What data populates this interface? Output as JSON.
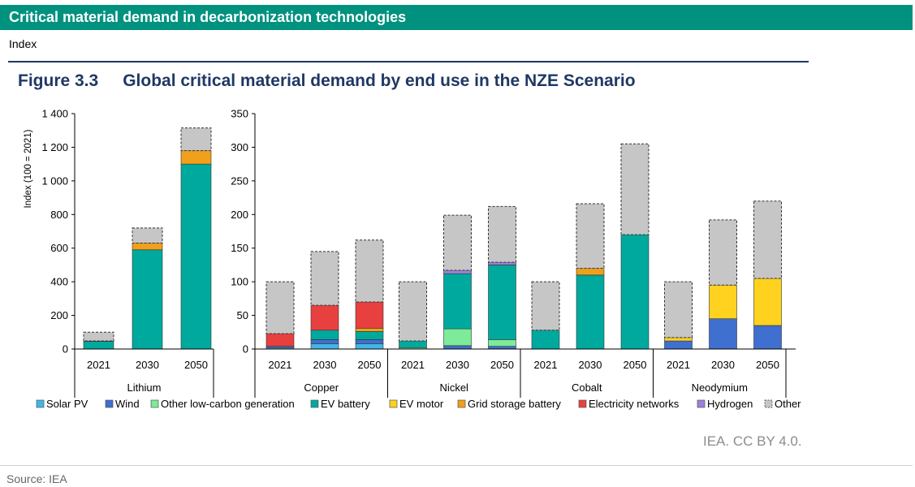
{
  "header": {
    "title": "Critical material demand in decarbonization technologies",
    "subtitle": "Index"
  },
  "figure": {
    "number": "Figure 3.3",
    "title": "Global critical material demand by end use in the NZE Scenario"
  },
  "footer": {
    "credit": "IEA. CC BY 4.0.",
    "source": "Source: IEA"
  },
  "colors": {
    "Solar PV": "#41b6e6",
    "Wind": "#3f6fcf",
    "Other low-carbon generation": "#7deb9a",
    "EV battery": "#00a99d",
    "EV motor": "#ffd21f",
    "Grid storage battery": "#f0a01a",
    "Electricity networks": "#e8403f",
    "Hydrogen": "#9f7fdb",
    "Other": "#c6c6c6"
  },
  "chart_data": [
    {
      "type": "bar",
      "stacked": true,
      "ylabel": "Index (100 = 2021)",
      "ylim": [
        0,
        1400
      ],
      "yticks": [
        0,
        200,
        400,
        600,
        800,
        1000,
        1200,
        1400
      ],
      "ytick_labels": [
        "0",
        "200",
        "400",
        "600",
        "800",
        "1 000",
        "1 200",
        "1 400"
      ],
      "groups": [
        {
          "name": "Lithium",
          "categories": [
            "2021",
            "2030",
            "2050"
          ],
          "stacks": [
            {
              "Solar PV": 0,
              "Wind": 0,
              "Other low-carbon generation": 0,
              "EV battery": 45,
              "EV motor": 0,
              "Grid storage battery": 3,
              "Electricity networks": 0,
              "Hydrogen": 0,
              "Other": 52
            },
            {
              "Solar PV": 0,
              "Wind": 0,
              "Other low-carbon generation": 0,
              "EV battery": 590,
              "EV motor": 0,
              "Grid storage battery": 40,
              "Electricity networks": 0,
              "Hydrogen": 0,
              "Other": 90
            },
            {
              "Solar PV": 0,
              "Wind": 0,
              "Other low-carbon generation": 0,
              "EV battery": 1100,
              "EV motor": 0,
              "Grid storage battery": 80,
              "Electricity networks": 0,
              "Hydrogen": 0,
              "Other": 135
            }
          ]
        }
      ]
    },
    {
      "type": "bar",
      "stacked": true,
      "ylim": [
        0,
        350
      ],
      "yticks": [
        0,
        50,
        100,
        150,
        200,
        250,
        300,
        350
      ],
      "ytick_labels": [
        "0",
        "50",
        "100",
        "150",
        "200",
        "250",
        "300",
        "350"
      ],
      "groups": [
        {
          "name": "Copper",
          "categories": [
            "2021",
            "2030",
            "2050"
          ],
          "stacks": [
            {
              "Solar PV": 2,
              "Wind": 2,
              "Other low-carbon generation": 0,
              "EV battery": 0,
              "EV motor": 0,
              "Grid storage battery": 0,
              "Electricity networks": 19,
              "Hydrogen": 0,
              "Other": 77
            },
            {
              "Solar PV": 8,
              "Wind": 6,
              "Other low-carbon generation": 0,
              "EV battery": 14,
              "EV motor": 0,
              "Grid storage battery": 0,
              "Electricity networks": 37,
              "Hydrogen": 0,
              "Other": 80
            },
            {
              "Solar PV": 8,
              "Wind": 6,
              "Other low-carbon generation": 0,
              "EV battery": 12,
              "EV motor": 0,
              "Grid storage battery": 5,
              "Electricity networks": 39,
              "Hydrogen": 0,
              "Other": 92
            }
          ]
        },
        {
          "name": "Nickel",
          "categories": [
            "2021",
            "2030",
            "2050"
          ],
          "stacks": [
            {
              "Solar PV": 0,
              "Wind": 0,
              "Other low-carbon generation": 2,
              "EV battery": 10,
              "EV motor": 0,
              "Grid storage battery": 0,
              "Electricity networks": 0,
              "Hydrogen": 0,
              "Other": 88
            },
            {
              "Solar PV": 0,
              "Wind": 5,
              "Other low-carbon generation": 25,
              "EV battery": 82,
              "EV motor": 0,
              "Grid storage battery": 0,
              "Electricity networks": 0,
              "Hydrogen": 5,
              "Other": 82
            },
            {
              "Solar PV": 0,
              "Wind": 4,
              "Other low-carbon generation": 10,
              "EV battery": 111,
              "EV motor": 0,
              "Grid storage battery": 0,
              "Electricity networks": 0,
              "Hydrogen": 4,
              "Other": 83
            }
          ]
        },
        {
          "name": "Cobalt",
          "categories": [
            "2021",
            "2030",
            "2050"
          ],
          "stacks": [
            {
              "Solar PV": 0,
              "Wind": 0,
              "Other low-carbon generation": 0,
              "EV battery": 28,
              "EV motor": 0,
              "Grid storage battery": 0,
              "Electricity networks": 0,
              "Hydrogen": 0,
              "Other": 72
            },
            {
              "Solar PV": 0,
              "Wind": 0,
              "Other low-carbon generation": 0,
              "EV battery": 110,
              "EV motor": 0,
              "Grid storage battery": 10,
              "Electricity networks": 0,
              "Hydrogen": 0,
              "Other": 96
            },
            {
              "Solar PV": 0,
              "Wind": 0,
              "Other low-carbon generation": 0,
              "EV battery": 170,
              "EV motor": 0,
              "Grid storage battery": 0,
              "Electricity networks": 0,
              "Hydrogen": 0,
              "Other": 135
            }
          ]
        },
        {
          "name": "Neodymium",
          "categories": [
            "2021",
            "2030",
            "2050"
          ],
          "stacks": [
            {
              "Solar PV": 0,
              "Wind": 12,
              "Other low-carbon generation": 0,
              "EV battery": 0,
              "EV motor": 5,
              "Grid storage battery": 0,
              "Electricity networks": 0,
              "Hydrogen": 0,
              "Other": 83
            },
            {
              "Solar PV": 0,
              "Wind": 45,
              "Other low-carbon generation": 0,
              "EV battery": 0,
              "EV motor": 50,
              "Grid storage battery": 0,
              "Electricity networks": 0,
              "Hydrogen": 0,
              "Other": 97
            },
            {
              "Solar PV": 0,
              "Wind": 35,
              "Other low-carbon generation": 0,
              "EV battery": 0,
              "EV motor": 70,
              "Grid storage battery": 0,
              "Electricity networks": 0,
              "Hydrogen": 0,
              "Other": 115
            }
          ]
        }
      ]
    }
  ],
  "legend": [
    "Solar PV",
    "Wind",
    "Other low-carbon generation",
    "EV battery",
    "EV motor",
    "Grid storage battery",
    "Electricity networks",
    "Hydrogen",
    "Other"
  ]
}
